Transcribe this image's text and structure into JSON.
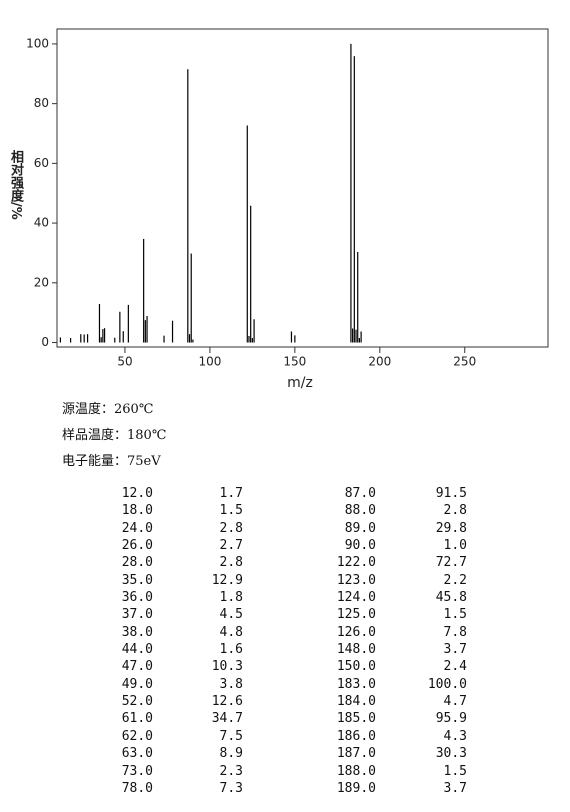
{
  "chart_data": {
    "type": "stem",
    "xlabel": "m/z",
    "ylabel": "相对强度/%",
    "x": [
      12,
      18,
      24,
      26,
      28,
      35,
      36,
      37,
      38,
      44,
      47,
      49,
      52,
      61,
      62,
      63,
      73,
      78,
      87,
      88,
      89,
      90,
      122,
      123,
      124,
      125,
      126,
      148,
      150,
      183,
      184,
      185,
      186,
      187,
      188,
      189
    ],
    "values": [
      1.7,
      1.5,
      2.8,
      2.7,
      2.8,
      12.9,
      1.8,
      4.5,
      4.8,
      1.6,
      10.3,
      3.8,
      12.6,
      34.7,
      7.5,
      8.9,
      2.3,
      7.3,
      91.5,
      2.8,
      29.8,
      1.0,
      72.7,
      2.2,
      45.8,
      1.5,
      7.8,
      3.7,
      2.4,
      100.0,
      4.7,
      95.9,
      4.3,
      30.3,
      1.5,
      3.7
    ],
    "color": "#000000",
    "xlim": [
      10,
      299
    ],
    "xticks": [
      50,
      100,
      150,
      200,
      250
    ],
    "ylim": [
      -1.5,
      105
    ],
    "yticks": [
      0,
      20,
      40,
      60,
      80,
      100
    ]
  },
  "info": [
    "源温度：260℃",
    "样品温度：180℃",
    "电子能量：75eV"
  ],
  "table": {
    "rows": [
      [
        "12.0",
        "1.7",
        "87.0",
        "91.5"
      ],
      [
        "18.0",
        "1.5",
        "88.0",
        "2.8"
      ],
      [
        "24.0",
        "2.8",
        "89.0",
        "29.8"
      ],
      [
        "26.0",
        "2.7",
        "90.0",
        "1.0"
      ],
      [
        "28.0",
        "2.8",
        "122.0",
        "72.7"
      ],
      [
        "35.0",
        "12.9",
        "123.0",
        "2.2"
      ],
      [
        "36.0",
        "1.8",
        "124.0",
        "45.8"
      ],
      [
        "37.0",
        "4.5",
        "125.0",
        "1.5"
      ],
      [
        "38.0",
        "4.8",
        "126.0",
        "7.8"
      ],
      [
        "44.0",
        "1.6",
        "148.0",
        "3.7"
      ],
      [
        "47.0",
        "10.3",
        "150.0",
        "2.4"
      ],
      [
        "49.0",
        "3.8",
        "183.0",
        "100.0"
      ],
      [
        "52.0",
        "12.6",
        "184.0",
        "4.7"
      ],
      [
        "61.0",
        "34.7",
        "185.0",
        "95.9"
      ],
      [
        "62.0",
        "7.5",
        "186.0",
        "4.3"
      ],
      [
        "63.0",
        "8.9",
        "187.0",
        "30.3"
      ],
      [
        "73.0",
        "2.3",
        "188.0",
        "1.5"
      ],
      [
        "78.0",
        "7.3",
        "189.0",
        "3.7"
      ]
    ]
  }
}
